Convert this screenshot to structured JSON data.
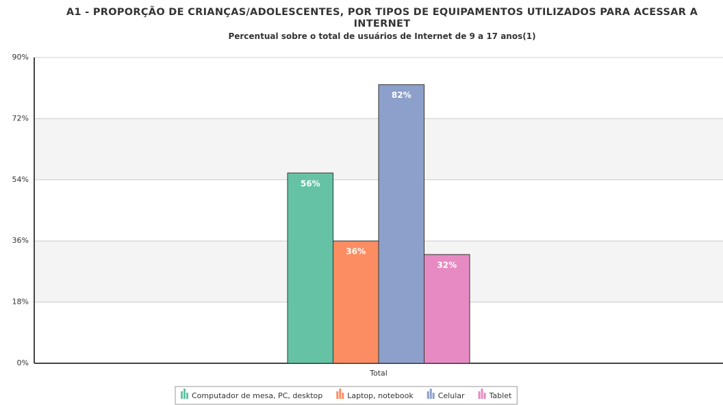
{
  "chart_data": {
    "type": "bar",
    "title": "A1 - PROPORÇÃO DE CRIANÇAS/ADOLESCENTES, POR TIPOS DE EQUIPAMENTOS UTILIZADOS PARA ACESSAR A INTERNET",
    "subtitle": "Percentual sobre o total de usuários de Internet de 9 a 17 anos(1)",
    "categories": [
      "Total"
    ],
    "series": [
      {
        "name": "Computador de mesa, PC, desktop",
        "color": "#66c2a5",
        "values": [
          56
        ],
        "value_labels": [
          "56%"
        ]
      },
      {
        "name": "Laptop, notebook",
        "color": "#fc8d62",
        "values": [
          36
        ],
        "value_labels": [
          "36%"
        ]
      },
      {
        "name": "Celular",
        "color": "#8da0cb",
        "values": [
          82
        ],
        "value_labels": [
          "82%"
        ]
      },
      {
        "name": "Tablet",
        "color": "#e78ac3",
        "values": [
          32
        ],
        "value_labels": [
          "32%"
        ]
      }
    ],
    "ylim": [
      0,
      90
    ],
    "yticks": [
      {
        "value": 0,
        "label": "0%"
      },
      {
        "value": 18,
        "label": "18%"
      },
      {
        "value": 36,
        "label": "36%"
      },
      {
        "value": 54,
        "label": "54%"
      },
      {
        "value": 72,
        "label": "72%"
      },
      {
        "value": 90,
        "label": "90%"
      }
    ],
    "grid": true,
    "legend": "bottom"
  }
}
